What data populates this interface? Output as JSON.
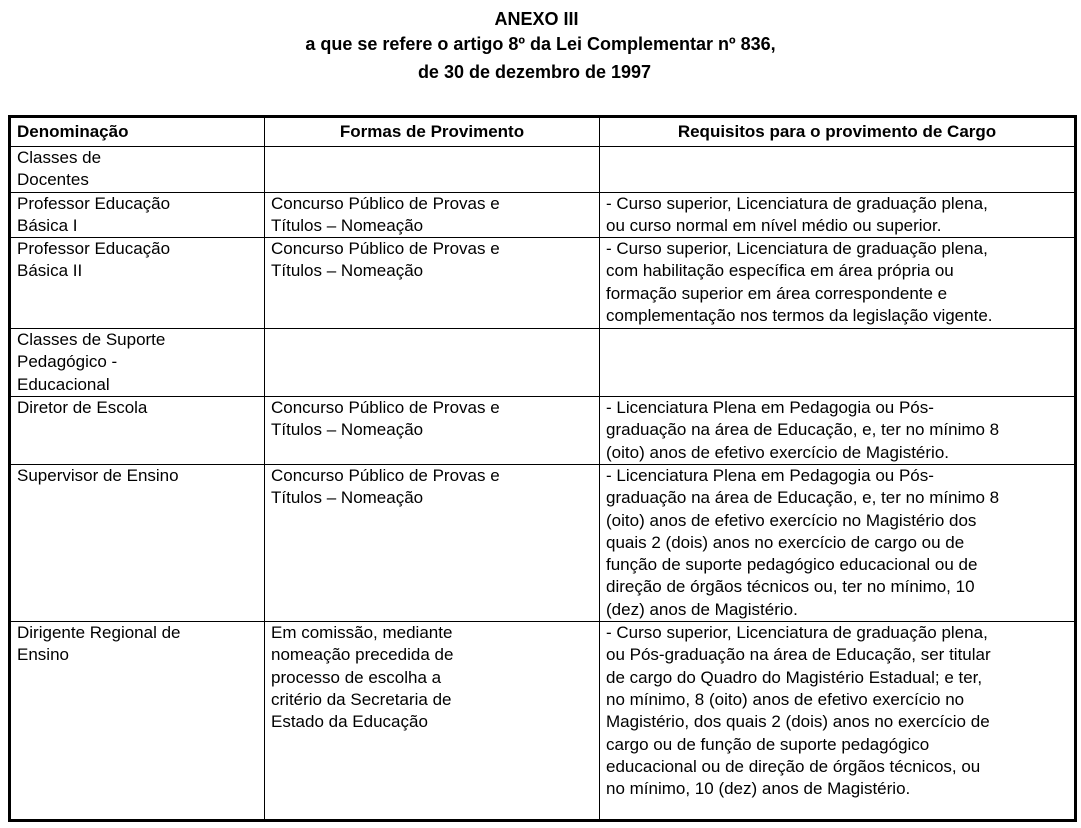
{
  "header": {
    "title": "ANEXO III",
    "subtitle_line1": "a que se refere o artigo 8º da Lei Complementar nº 836,",
    "subtitle_line2": "de 30 de dezembro de 1997"
  },
  "table": {
    "columns": [
      "Denominação",
      "Formas de Provimento",
      "Requisitos para o provimento de Cargo"
    ],
    "rows": [
      {
        "denominacao": "Classes de\nDocentes",
        "formas": "",
        "requisitos": ""
      },
      {
        "denominacao": "Professor Educação\nBásica I",
        "formas": "Concurso Público de Provas e\nTítulos – Nomeação",
        "requisitos": "- Curso superior, Licenciatura de graduação plena,\nou curso normal em nível médio ou superior."
      },
      {
        "denominacao": "Professor Educação\nBásica II",
        "formas": "Concurso Público de Provas e\nTítulos – Nomeação",
        "requisitos": "- Curso superior, Licenciatura de graduação plena,\ncom habilitação específica em área própria ou\nformação superior em área correspondente e\ncomplementação nos termos da legislação vigente."
      },
      {
        "denominacao": "Classes de Suporte\nPedagógico -\nEducacional",
        "formas": "",
        "requisitos": ""
      },
      {
        "denominacao": "Diretor de Escola",
        "formas": "Concurso Público de Provas e\nTítulos – Nomeação",
        "requisitos": "- Licenciatura Plena em Pedagogia ou Pós-\ngraduação na área de Educação, e, ter no mínimo 8\n(oito) anos de efetivo exercício de Magistério."
      },
      {
        "denominacao": "Supervisor de Ensino",
        "formas": "Concurso Público de Provas e\nTítulos – Nomeação",
        "requisitos": "- Licenciatura Plena em Pedagogia ou Pós-\ngraduação na área de Educação, e, ter no mínimo 8\n(oito) anos de efetivo exercício no Magistério dos\nquais 2 (dois) anos no exercício de cargo ou de\nfunção de suporte pedagógico educacional ou de\ndireção de órgãos técnicos ou, ter no mínimo, 10\n(dez) anos de Magistério."
      },
      {
        "denominacao": "Dirigente Regional de\nEnsino",
        "formas": "Em comissão, mediante\nnomeação precedida de\nprocesso de escolha a\ncritério da Secretaria de\nEstado da Educação",
        "requisitos": "- Curso superior, Licenciatura de graduação plena,\nou Pós-graduação na área de Educação, ser titular\nde cargo do Quadro do Magistério Estadual; e ter,\nno mínimo, 8 (oito) anos de efetivo exercício no\nMagistério, dos quais 2 (dois) anos no exercício de\ncargo ou de função de suporte pedagógico\neducacional ou de direção de órgãos técnicos, ou\nno mínimo, 10 (dez) anos de Magistério."
      }
    ]
  }
}
